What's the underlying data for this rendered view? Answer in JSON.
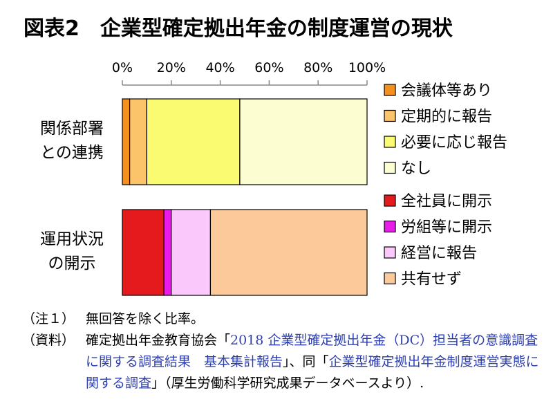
{
  "title": "図表2　企業型確定拠出年金の制度運営の現状",
  "chart_data": {
    "type": "bar",
    "orientation": "horizontal",
    "stacked": true,
    "x_ticks": [
      "0%",
      "20%",
      "40%",
      "60%",
      "80%",
      "100%"
    ],
    "xlim": [
      0,
      100
    ],
    "bars": [
      {
        "label_lines": [
          "関係部署",
          "との連携"
        ],
        "segments": [
          {
            "name": "会議体等あり",
            "value": 3,
            "color": "#f4901e"
          },
          {
            "name": "定期的に報告",
            "value": 7,
            "color": "#fbc46b"
          },
          {
            "name": "必要に応じ報告",
            "value": 38,
            "color": "#fbfb72"
          },
          {
            "name": "なし",
            "value": 52,
            "color": "#fdfdd2"
          }
        ]
      },
      {
        "label_lines": [
          "運用状況",
          "の開示"
        ],
        "segments": [
          {
            "name": "全社員に開示",
            "value": 17,
            "color": "#e41a1c"
          },
          {
            "name": "労組等に開示",
            "value": 3,
            "color": "#e81ce8"
          },
          {
            "name": "経営に報告",
            "value": 16,
            "color": "#fac8fa"
          },
          {
            "name": "共有せず",
            "value": 64,
            "color": "#fbc99a"
          }
        ]
      }
    ],
    "grid": false,
    "legend_position": "right"
  },
  "notes": {
    "note1_label": "（注１）",
    "note1_text": "無回答を除く比率。",
    "source_label": "（資料）",
    "source_part1": "確定拠出年金教育協会「",
    "source_part2": "2018 企業型確定拠出年金（DC）担当者の意識調査に関する調査結果　基本集計報告",
    "source_part3": "」、同「",
    "source_part4": "企業型確定拠出年金制度運営実態に関する調査",
    "source_part5": "」（厚生労働科学研究成果データベースより）."
  }
}
